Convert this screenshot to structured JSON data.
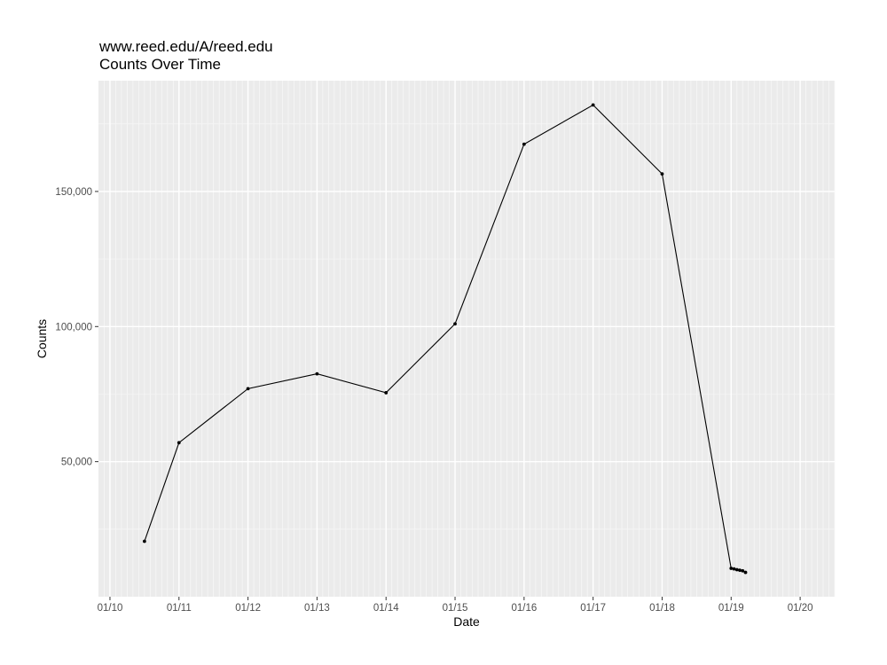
{
  "chart_data": {
    "type": "line",
    "title": "www.reed.edu/A/reed.edu",
    "subtitle": "Counts Over Time",
    "xlabel": "Date",
    "ylabel": "Counts",
    "x_tick_labels": [
      "01/10",
      "01/11",
      "01/12",
      "01/13",
      "01/14",
      "01/15",
      "01/16",
      "01/17",
      "01/18",
      "01/19",
      "01/20"
    ],
    "y_tick_labels": [
      "50,000",
      "100,000",
      "150,000"
    ],
    "y_ticks": [
      50000,
      100000,
      150000
    ],
    "xlim": [
      "01/09 20:00",
      "01/20 12:00"
    ],
    "ylim": [
      0,
      191000
    ],
    "grid": true,
    "series": [
      {
        "color": "#000000",
        "points": [
          {
            "x": "01/10 12:00",
            "y": 20500
          },
          {
            "x": "01/11 00:00",
            "y": 57000
          },
          {
            "x": "01/12 00:00",
            "y": 77000
          },
          {
            "x": "01/13 00:00",
            "y": 82500
          },
          {
            "x": "01/14 00:00",
            "y": 75500
          },
          {
            "x": "01/15 00:00",
            "y": 101000
          },
          {
            "x": "01/16 00:00",
            "y": 167500
          },
          {
            "x": "01/17 00:00",
            "y": 182000
          },
          {
            "x": "01/18 00:00",
            "y": 156500
          },
          {
            "x": "01/19 00:00",
            "y": 10500
          },
          {
            "x": "01/19 01:00",
            "y": 10300
          },
          {
            "x": "01/19 02:00",
            "y": 10000
          },
          {
            "x": "01/19 03:00",
            "y": 9800
          },
          {
            "x": "01/19 04:00",
            "y": 9600
          },
          {
            "x": "01/19 05:00",
            "y": 9000
          }
        ]
      }
    ]
  }
}
